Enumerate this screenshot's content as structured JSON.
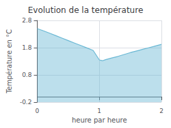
{
  "chart_data": {
    "type": "line",
    "title": "Evolution de la température",
    "x_label": "heure par heure",
    "y_label": "Température en °C",
    "x": [
      0,
      0.1,
      0.2,
      0.3,
      0.4,
      0.5,
      0.6,
      0.7,
      0.8,
      0.9,
      1.0,
      1.05,
      1.1,
      1.2,
      1.3,
      1.4,
      1.5,
      1.6,
      1.7,
      1.8,
      1.9,
      2.0
    ],
    "values": [
      2.5,
      2.42,
      2.33,
      2.24,
      2.15,
      2.06,
      1.97,
      1.88,
      1.79,
      1.7,
      1.35,
      1.32,
      1.36,
      1.42,
      1.48,
      1.55,
      1.62,
      1.68,
      1.74,
      1.8,
      1.86,
      1.92
    ],
    "color": "#6ab8d4",
    "xlim": [
      0,
      2
    ],
    "xticks": [
      0,
      1,
      2
    ],
    "ylim": [
      -0.2,
      2.8
    ],
    "yticks": [
      -0.2,
      0.8,
      1.8,
      2.8
    ],
    "grid": true
  }
}
